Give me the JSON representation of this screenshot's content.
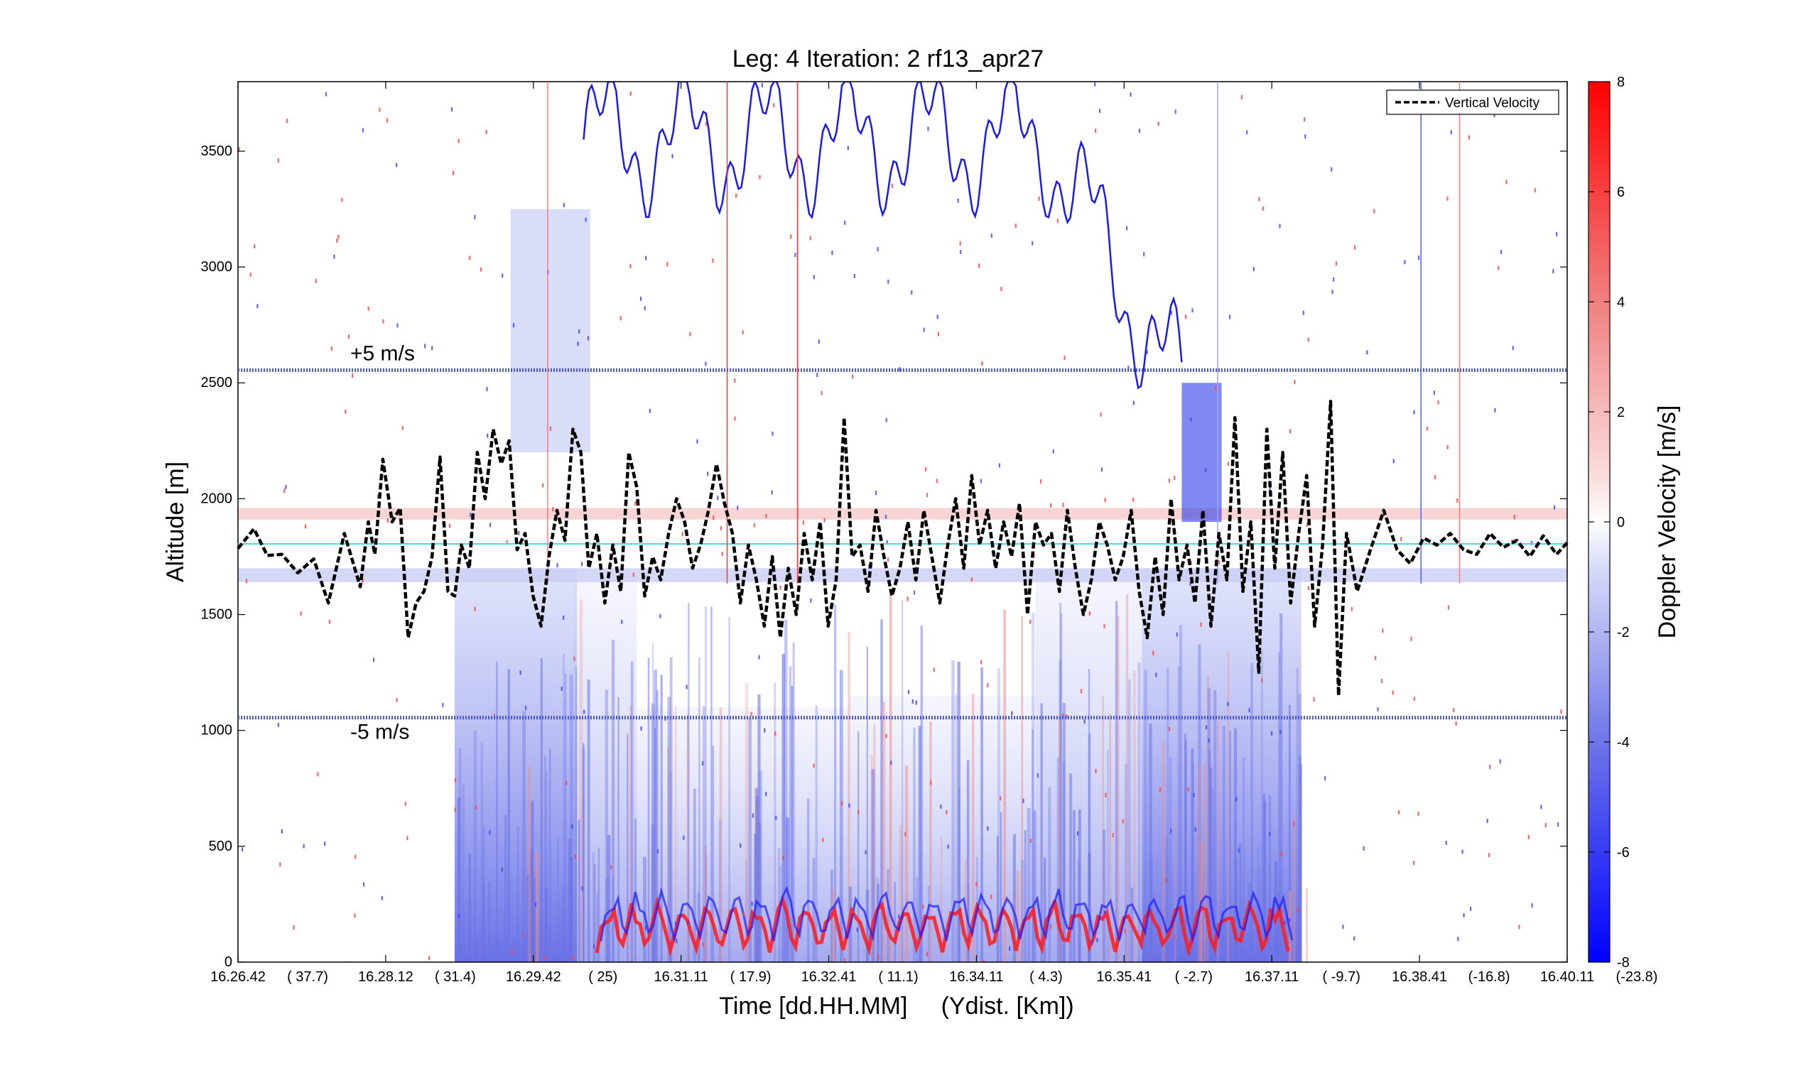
{
  "chart_data": {
    "type": "heatmap",
    "title": "Leg: 4  Iteration: 2  rf13_apr27",
    "xlabel": "Time [dd.HH.MM]     (Ydist. [Km])",
    "ylabel": "Altitude [m]",
    "colorbar_label": "Doppler Velocity [m/s]",
    "ylim": [
      0,
      3800
    ],
    "clim": [
      -8,
      8
    ],
    "yticks": [
      0,
      500,
      1000,
      1500,
      2000,
      2500,
      3000,
      3500
    ],
    "colorbar_ticks": [
      -8,
      -6,
      -4,
      -2,
      0,
      2,
      4,
      6,
      8
    ],
    "xtick_labels": [
      {
        "time": "16.26.42",
        "ydist": "( 37.7)"
      },
      {
        "time": "16.28.12",
        "ydist": "( 31.4)"
      },
      {
        "time": "16.29.42",
        "ydist": "(   25)"
      },
      {
        "time": "16.31.11",
        "ydist": "( 17.9)"
      },
      {
        "time": "16.32.41",
        "ydist": "( 11.1)"
      },
      {
        "time": "16.34.11",
        "ydist": "(  4.3)"
      },
      {
        "time": "16.35.41",
        "ydist": "( -2.7)"
      },
      {
        "time": "16.37.11",
        "ydist": "( -9.7)"
      },
      {
        "time": "16.38.41",
        "ydist": "(-16.8)"
      },
      {
        "time": "16.40.11",
        "ydist": "(-23.8)"
      }
    ],
    "legend": {
      "label": "Vertical Velocity",
      "position": "top-right"
    },
    "reference_lines": [
      {
        "label": "+5 m/s",
        "altitude": 2555,
        "color": "#4a58d8"
      },
      {
        "label": "-5 m/s",
        "altitude": 1055,
        "color": "#4a58d8"
      },
      {
        "label": "",
        "altitude": 1805,
        "color": "#40e0e0"
      }
    ],
    "series": [
      {
        "name": "Vertical Velocity",
        "style": "dashed-black",
        "x_fraction": [
          0.0,
          0.012,
          0.022,
          0.033,
          0.045,
          0.057,
          0.068,
          0.08,
          0.092,
          0.098,
          0.103,
          0.109,
          0.116,
          0.122,
          0.128,
          0.134,
          0.14,
          0.146,
          0.152,
          0.158,
          0.163,
          0.168,
          0.174,
          0.18,
          0.186,
          0.192,
          0.198,
          0.204,
          0.21,
          0.216,
          0.222,
          0.228,
          0.234,
          0.24,
          0.246,
          0.252,
          0.258,
          0.264,
          0.27,
          0.276,
          0.282,
          0.288,
          0.294,
          0.3,
          0.306,
          0.312,
          0.318,
          0.324,
          0.33,
          0.336,
          0.342,
          0.348,
          0.354,
          0.36,
          0.366,
          0.372,
          0.378,
          0.384,
          0.39,
          0.396,
          0.402,
          0.408,
          0.414,
          0.42,
          0.426,
          0.432,
          0.438,
          0.444,
          0.45,
          0.456,
          0.462,
          0.468,
          0.474,
          0.48,
          0.486,
          0.492,
          0.498,
          0.504,
          0.51,
          0.516,
          0.522,
          0.528,
          0.534,
          0.54,
          0.546,
          0.552,
          0.558,
          0.564,
          0.57,
          0.576,
          0.582,
          0.588,
          0.594,
          0.6,
          0.606,
          0.612,
          0.618,
          0.624,
          0.63,
          0.636,
          0.642,
          0.648,
          0.654,
          0.66,
          0.666,
          0.672,
          0.678,
          0.684,
          0.69,
          0.696,
          0.702,
          0.708,
          0.714,
          0.72,
          0.726,
          0.732,
          0.738,
          0.744,
          0.75,
          0.756,
          0.762,
          0.768,
          0.774,
          0.78,
          0.786,
          0.792,
          0.798,
          0.804,
          0.81,
          0.816,
          0.822,
          0.828,
          0.834,
          0.842,
          0.852,
          0.862,
          0.872,
          0.882,
          0.892,
          0.902,
          0.912,
          0.922,
          0.932,
          0.942,
          0.952,
          0.962,
          0.972,
          0.982,
          0.992,
          1.0
        ],
        "values": [
          1785,
          1870,
          1755,
          1760,
          1680,
          1740,
          1550,
          1850,
          1620,
          1900,
          1760,
          2170,
          1900,
          1960,
          1400,
          1550,
          1600,
          1750,
          2180,
          1600,
          1580,
          1800,
          1700,
          2200,
          2000,
          2300,
          2150,
          2250,
          1780,
          1850,
          1580,
          1450,
          1750,
          1950,
          1820,
          2300,
          2200,
          1700,
          1850,
          1550,
          1800,
          1600,
          2200,
          2050,
          1580,
          1750,
          1650,
          1850,
          2000,
          1900,
          1700,
          1800,
          1950,
          2150,
          1980,
          1850,
          1550,
          1800,
          1650,
          1450,
          1750,
          1400,
          1700,
          1500,
          1850,
          1650,
          1900,
          1450,
          1650,
          2350,
          1750,
          1800,
          1600,
          1950,
          1750,
          1580,
          1700,
          1900,
          1650,
          1950,
          1750,
          1550,
          1800,
          2000,
          1700,
          2100,
          1800,
          1950,
          1700,
          1900,
          1750,
          1980,
          1500,
          1900,
          1800,
          1850,
          1600,
          1950,
          1700,
          1500,
          1650,
          1900,
          1800,
          1650,
          1750,
          1950,
          1600,
          1400,
          1750,
          1500,
          2000,
          1650,
          1800,
          1550,
          1950,
          1450,
          1850,
          1650,
          2350,
          1600,
          1900,
          1250,
          2300,
          1700,
          2200,
          1550,
          1850,
          2100,
          1450,
          1800,
          2420,
          1150,
          1850,
          1600,
          1780,
          1950,
          1780,
          1720,
          1830,
          1800,
          1850,
          1780,
          1760,
          1850,
          1790,
          1820,
          1750,
          1840,
          1760,
          1810,
          1810
        ]
      }
    ],
    "vertical_markers": [
      {
        "x_fraction": 0.233,
        "color": "#f08080"
      },
      {
        "x_fraction": 0.368,
        "color": "#ff3333"
      },
      {
        "x_fraction": 0.421,
        "color": "#ff3333"
      },
      {
        "x_fraction": 0.919,
        "color": "#f08080"
      },
      {
        "x_fraction": 0.89,
        "color": "#5060ff"
      },
      {
        "x_fraction": 0.737,
        "color": "#a0a0ff"
      }
    ],
    "colors": {
      "positive": "#ff0000",
      "negative": "#0000ff",
      "zero": "#ffffff",
      "aircraft_level": "#40e0e0"
    }
  }
}
